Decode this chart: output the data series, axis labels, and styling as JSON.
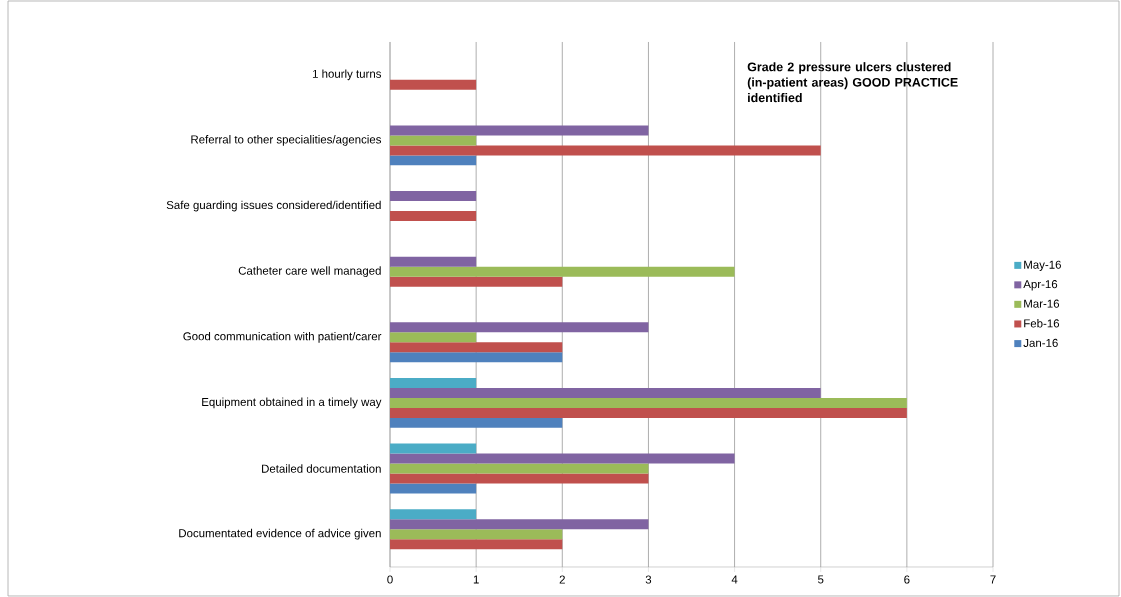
{
  "chart_data": {
    "type": "bar",
    "orientation": "horizontal",
    "title": "Grade 2 pressure ulcers clustered (in-patient areas) GOOD PRACTICE identified",
    "categories": [
      "1 hourly turns",
      "Referral to other specialities/agencies",
      "Safe guarding issues considered/identified",
      "Catheter care well managed",
      "Good communication with patient/carer",
      "Equipment obtained in a timely way",
      "Detailed documentation",
      "Documentated evidence of advice given"
    ],
    "series": [
      {
        "name": "Jan-16",
        "color": "#4f81bd",
        "values": [
          null,
          1,
          null,
          null,
          2,
          2,
          1,
          null
        ]
      },
      {
        "name": "Feb-16",
        "color": "#c0504d",
        "values": [
          1,
          5,
          1,
          2,
          2,
          6,
          3,
          2
        ]
      },
      {
        "name": "Mar-16",
        "color": "#9bbb59",
        "values": [
          null,
          1,
          null,
          4,
          1,
          6,
          3,
          2
        ]
      },
      {
        "name": "Apr-16",
        "color": "#8064a2",
        "values": [
          null,
          3,
          1,
          1,
          3,
          5,
          4,
          3
        ]
      },
      {
        "name": "May-16",
        "color": "#4bacc6",
        "values": [
          null,
          null,
          null,
          null,
          null,
          1,
          1,
          1
        ]
      }
    ],
    "xlim": [
      0,
      7
    ],
    "xticks": [
      0,
      1,
      2,
      3,
      4,
      5,
      6,
      7
    ],
    "grid": "x",
    "legend": "right"
  }
}
